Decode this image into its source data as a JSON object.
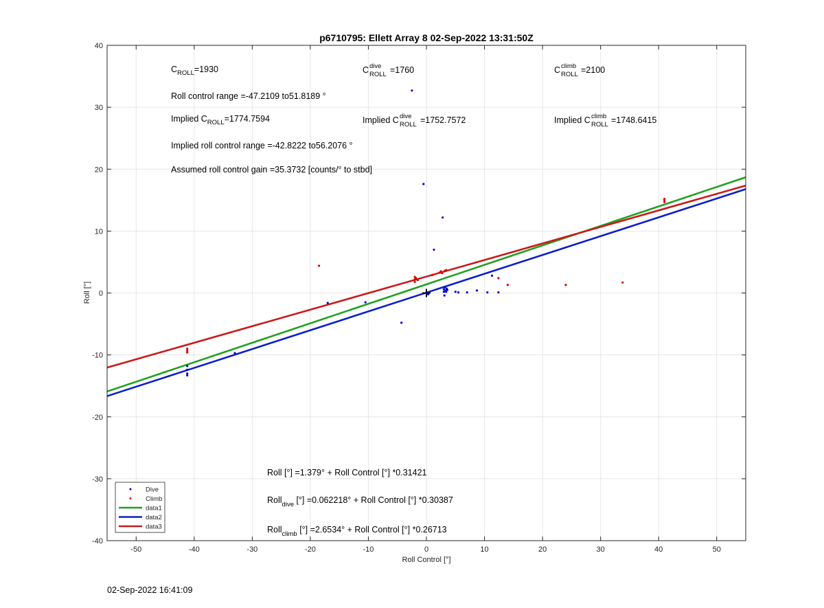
{
  "chart_data": {
    "type": "scatter",
    "title": "p6710795: Ellett Array 8 02-Sep-2022 13:31:50Z",
    "xlabel": "Roll Control [°]",
    "ylabel": "Roll [°]",
    "xlim": [
      -55,
      55
    ],
    "ylim": [
      -40,
      40
    ],
    "xticks": [
      -50,
      -40,
      -30,
      -20,
      -10,
      0,
      10,
      20,
      30,
      40,
      50
    ],
    "yticks": [
      -40,
      -30,
      -20,
      -10,
      0,
      10,
      20,
      30,
      40
    ],
    "grid": true,
    "legend_position": "bottom-left",
    "colors": {
      "dive": "#0000d8",
      "climb": "#d80000",
      "data1": "#1fa01f",
      "data2": "#0a1fc8",
      "data3": "#c81a1a"
    },
    "series": [
      {
        "name": "Dive",
        "kind": "points",
        "color": "#0000d8",
        "x": [
          -41.2,
          -41.2,
          -41.2,
          -41.2,
          -33,
          -17,
          -10.5,
          -4.3,
          -2.5,
          -0.5,
          0,
          0.3,
          1.3,
          2.8,
          3,
          3,
          3.1,
          3.2,
          3.3,
          3.4,
          3.5,
          3.6,
          5,
          5.5,
          7,
          8.7,
          10.5,
          12.4,
          11.3
        ],
        "y": [
          -11.8,
          -12.4,
          -13,
          -13.3,
          -9.7,
          -1.6,
          -1.5,
          -4.8,
          32.7,
          17.6,
          0,
          -0.2,
          7,
          12.2,
          0.2,
          0.6,
          -0.4,
          0.9,
          0.4,
          0.2,
          0.7,
          0.5,
          0.2,
          0.1,
          0.1,
          0.4,
          0.1,
          0.1,
          2.8
        ]
      },
      {
        "name": "Climb",
        "kind": "points",
        "color": "#d80000",
        "x": [
          -41.2,
          -41.2,
          -41.2,
          -18.5,
          -2,
          -2,
          -2,
          -1.8,
          -1.5,
          1,
          2.3,
          2.5,
          2.7,
          3.2,
          3.4,
          12.4,
          14,
          24,
          33.8,
          41,
          41,
          41
        ],
        "y": [
          -9,
          -9.3,
          -9.6,
          4.4,
          1.8,
          2.2,
          2.6,
          2.4,
          2.1,
          2.9,
          3.3,
          3.5,
          3.2,
          3.6,
          3.7,
          2.4,
          1.3,
          1.3,
          1.7,
          14.7,
          15,
          15.2
        ]
      },
      {
        "name": "data1",
        "kind": "line",
        "color": "#1fa01f",
        "x": [
          -55,
          55
        ],
        "y": [
          -15.9,
          18.7
        ]
      },
      {
        "name": "data2",
        "kind": "line",
        "color": "#0a1fc8",
        "x": [
          -55,
          55
        ],
        "y": [
          -16.65,
          16.78
        ]
      },
      {
        "name": "data3",
        "kind": "line",
        "color": "#c81a1a",
        "x": [
          -55,
          55
        ],
        "y": [
          -12.04,
          17.35
        ]
      }
    ]
  },
  "annotations": {
    "c_roll": {
      "base": "C",
      "sub": "ROLL",
      "value": "=1930"
    },
    "c_dive": {
      "base": "C",
      "sup": "dive",
      "sub": "ROLL",
      "value": "=1760"
    },
    "c_climb": {
      "base": "C",
      "sup": "climb",
      "sub": "ROLL",
      "value": "=2100"
    },
    "range": "Roll control range =-47.2109 to51.8189 °",
    "implied": {
      "prefix": "Implied C",
      "sub": "ROLL",
      "value": "=1774.7594"
    },
    "implied_dive": {
      "prefix": "Implied C",
      "sup": "dive",
      "sub": "ROLL",
      "value": "=1752.7572"
    },
    "implied_climb": {
      "prefix": "Implied C",
      "sup": "climb",
      "sub": "ROLL",
      "value": "=1748.6415"
    },
    "implied_range": "Implied roll control range =-42.8222 to56.2076 °",
    "gain": "Assumed roll control gain =35.3732 [counts/° to stbd]",
    "fit_all": "Roll [°] =1.379° + Roll Control [°] *0.31421",
    "fit_dive": {
      "base": "Roll",
      "sub": "dive",
      "rest": " [°] =0.062218° + Roll Control [°] *0.30387"
    },
    "fit_climb": {
      "base": "Roll",
      "sub": "climb",
      "rest": " [°] =2.6534° + Roll Control [°] *0.26713"
    }
  },
  "legend": [
    {
      "label": "Dive",
      "type": "dot",
      "color": "#0000d8"
    },
    {
      "label": "Climb",
      "type": "dot",
      "color": "#d80000"
    },
    {
      "label": "data1",
      "type": "line",
      "color": "#1fa01f"
    },
    {
      "label": "data2",
      "type": "line",
      "color": "#0a1fc8"
    },
    {
      "label": "data3",
      "type": "line",
      "color": "#c81a1a"
    }
  ],
  "footer": "02-Sep-2022 16:41:09"
}
